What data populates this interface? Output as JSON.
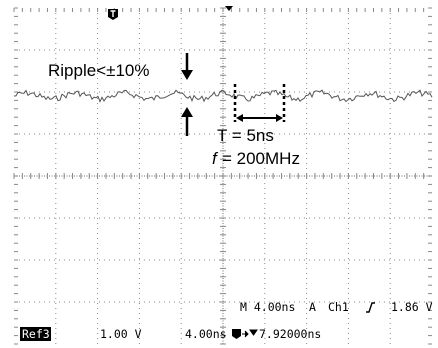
{
  "annotations": {
    "ripple": "Ripple<±10%",
    "period": "T = 5ns",
    "frequency_symbol": "f",
    "frequency_value": "= 200MHz"
  },
  "status": {
    "timebase": "M 4.00ns",
    "trigger_mode": "A",
    "trigger_source": "Ch1",
    "trigger_level": "1.86 V"
  },
  "footer": {
    "reference": "Ref3",
    "volts_per_div": "1.00 V",
    "time_per_div": "4.00ns",
    "trigger_position": "7.92000ns"
  }
}
